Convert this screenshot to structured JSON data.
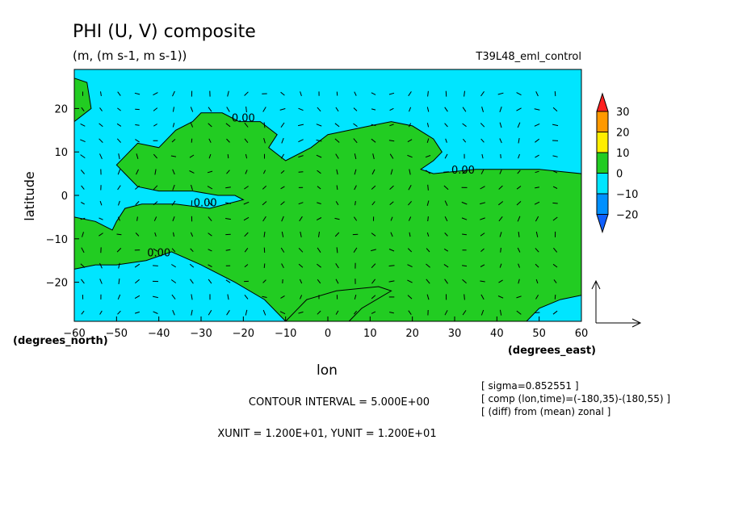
{
  "header": {
    "title": "PHI (U, V) composite",
    "units": "(m, (m s-1, m s-1))",
    "experiment": "T39L48_eml_control"
  },
  "colors": {
    "positive": "#22cc22",
    "negative": "#00e5ff",
    "border": "#000000"
  },
  "chart_data": {
    "type": "contour+vector",
    "x": {
      "label": "lon",
      "units": "(degrees_east)",
      "range": [
        -60,
        60
      ],
      "ticks": [
        -60,
        -50,
        -40,
        -30,
        -20,
        -10,
        0,
        10,
        20,
        30,
        40,
        50,
        60
      ]
    },
    "y": {
      "label": "latitude",
      "units": "(degrees_north)",
      "range": [
        -29,
        29
      ],
      "ticks": [
        -20,
        -10,
        0,
        10,
        20
      ]
    },
    "contour_labels": [
      {
        "text": "0.00",
        "lon": -20,
        "lat": 17
      },
      {
        "text": "0.00",
        "lon": 32,
        "lat": 5
      },
      {
        "text": "0.00",
        "lon": -29,
        "lat": -2.5
      },
      {
        "text": "0.00",
        "lon": -40,
        "lat": -14
      }
    ],
    "colorbar": {
      "levels": [
        30,
        20,
        10,
        0,
        -10,
        -20
      ],
      "colors": [
        "#ff2020",
        "#ff9900",
        "#ffee00",
        "#22cc22",
        "#00e5ff",
        "#0090ff",
        "#1060ff"
      ]
    },
    "contour_regions_positive": [
      [
        [
          -60,
          27
        ],
        [
          -57,
          26
        ],
        [
          -56,
          20
        ],
        [
          -60,
          17
        ]
      ],
      [
        [
          -50,
          7
        ],
        [
          -45,
          12
        ],
        [
          -40,
          11
        ],
        [
          -36,
          15
        ],
        [
          -32,
          17
        ],
        [
          -30,
          19
        ],
        [
          -25,
          19
        ],
        [
          -21,
          17
        ],
        [
          -16,
          17
        ],
        [
          -12,
          14
        ],
        [
          -14,
          11
        ],
        [
          -10,
          8
        ],
        [
          -4,
          11
        ],
        [
          0,
          14
        ],
        [
          10,
          16
        ],
        [
          15,
          17
        ],
        [
          20,
          16
        ],
        [
          25,
          13
        ],
        [
          27,
          10
        ],
        [
          25,
          8
        ],
        [
          22,
          6
        ],
        [
          25,
          5
        ],
        [
          35,
          6
        ],
        [
          50,
          6
        ],
        [
          60,
          5
        ],
        [
          60,
          -23
        ],
        [
          55,
          -24
        ],
        [
          50,
          -26
        ],
        [
          47,
          -29
        ],
        [
          -10,
          -29
        ],
        [
          -15,
          -24
        ],
        [
          -22,
          -20
        ],
        [
          -30,
          -16
        ],
        [
          -37,
          -13
        ],
        [
          -43,
          -15
        ],
        [
          -50,
          -16
        ],
        [
          -55,
          -16
        ],
        [
          -60,
          -17
        ],
        [
          -60,
          -5
        ],
        [
          -55,
          -6
        ],
        [
          -51,
          -8
        ],
        [
          -50,
          -6
        ],
        [
          -48,
          -3
        ],
        [
          -44,
          -2
        ],
        [
          -36,
          -2
        ],
        [
          -28,
          -3
        ],
        [
          -20,
          -1
        ],
        [
          -22,
          0
        ],
        [
          -26,
          0
        ],
        [
          -32,
          1
        ],
        [
          -40,
          1
        ],
        [
          -45,
          2
        ],
        [
          -48,
          5
        ]
      ],
      [
        [
          5,
          -29
        ],
        [
          8,
          -26
        ],
        [
          15,
          -22
        ],
        [
          12,
          -21
        ],
        [
          2,
          -22
        ],
        [
          -5,
          -24
        ],
        [
          -10,
          -29
        ]
      ]
    ],
    "vector_units": {
      "xunit": "1.200E+01",
      "yunit": "1.200E+01"
    }
  },
  "footer": {
    "contour_interval": "CONTOUR INTERVAL = 5.000E+00",
    "units_line": "XUNIT = 1.200E+01, YUNIT = 1.200E+01",
    "notes": [
      "[ sigma=0.852551 ]",
      "[ comp (lon,time)=(-180,35)-(180,55) ]",
      "[ (diff) from (mean) zonal ]"
    ]
  }
}
